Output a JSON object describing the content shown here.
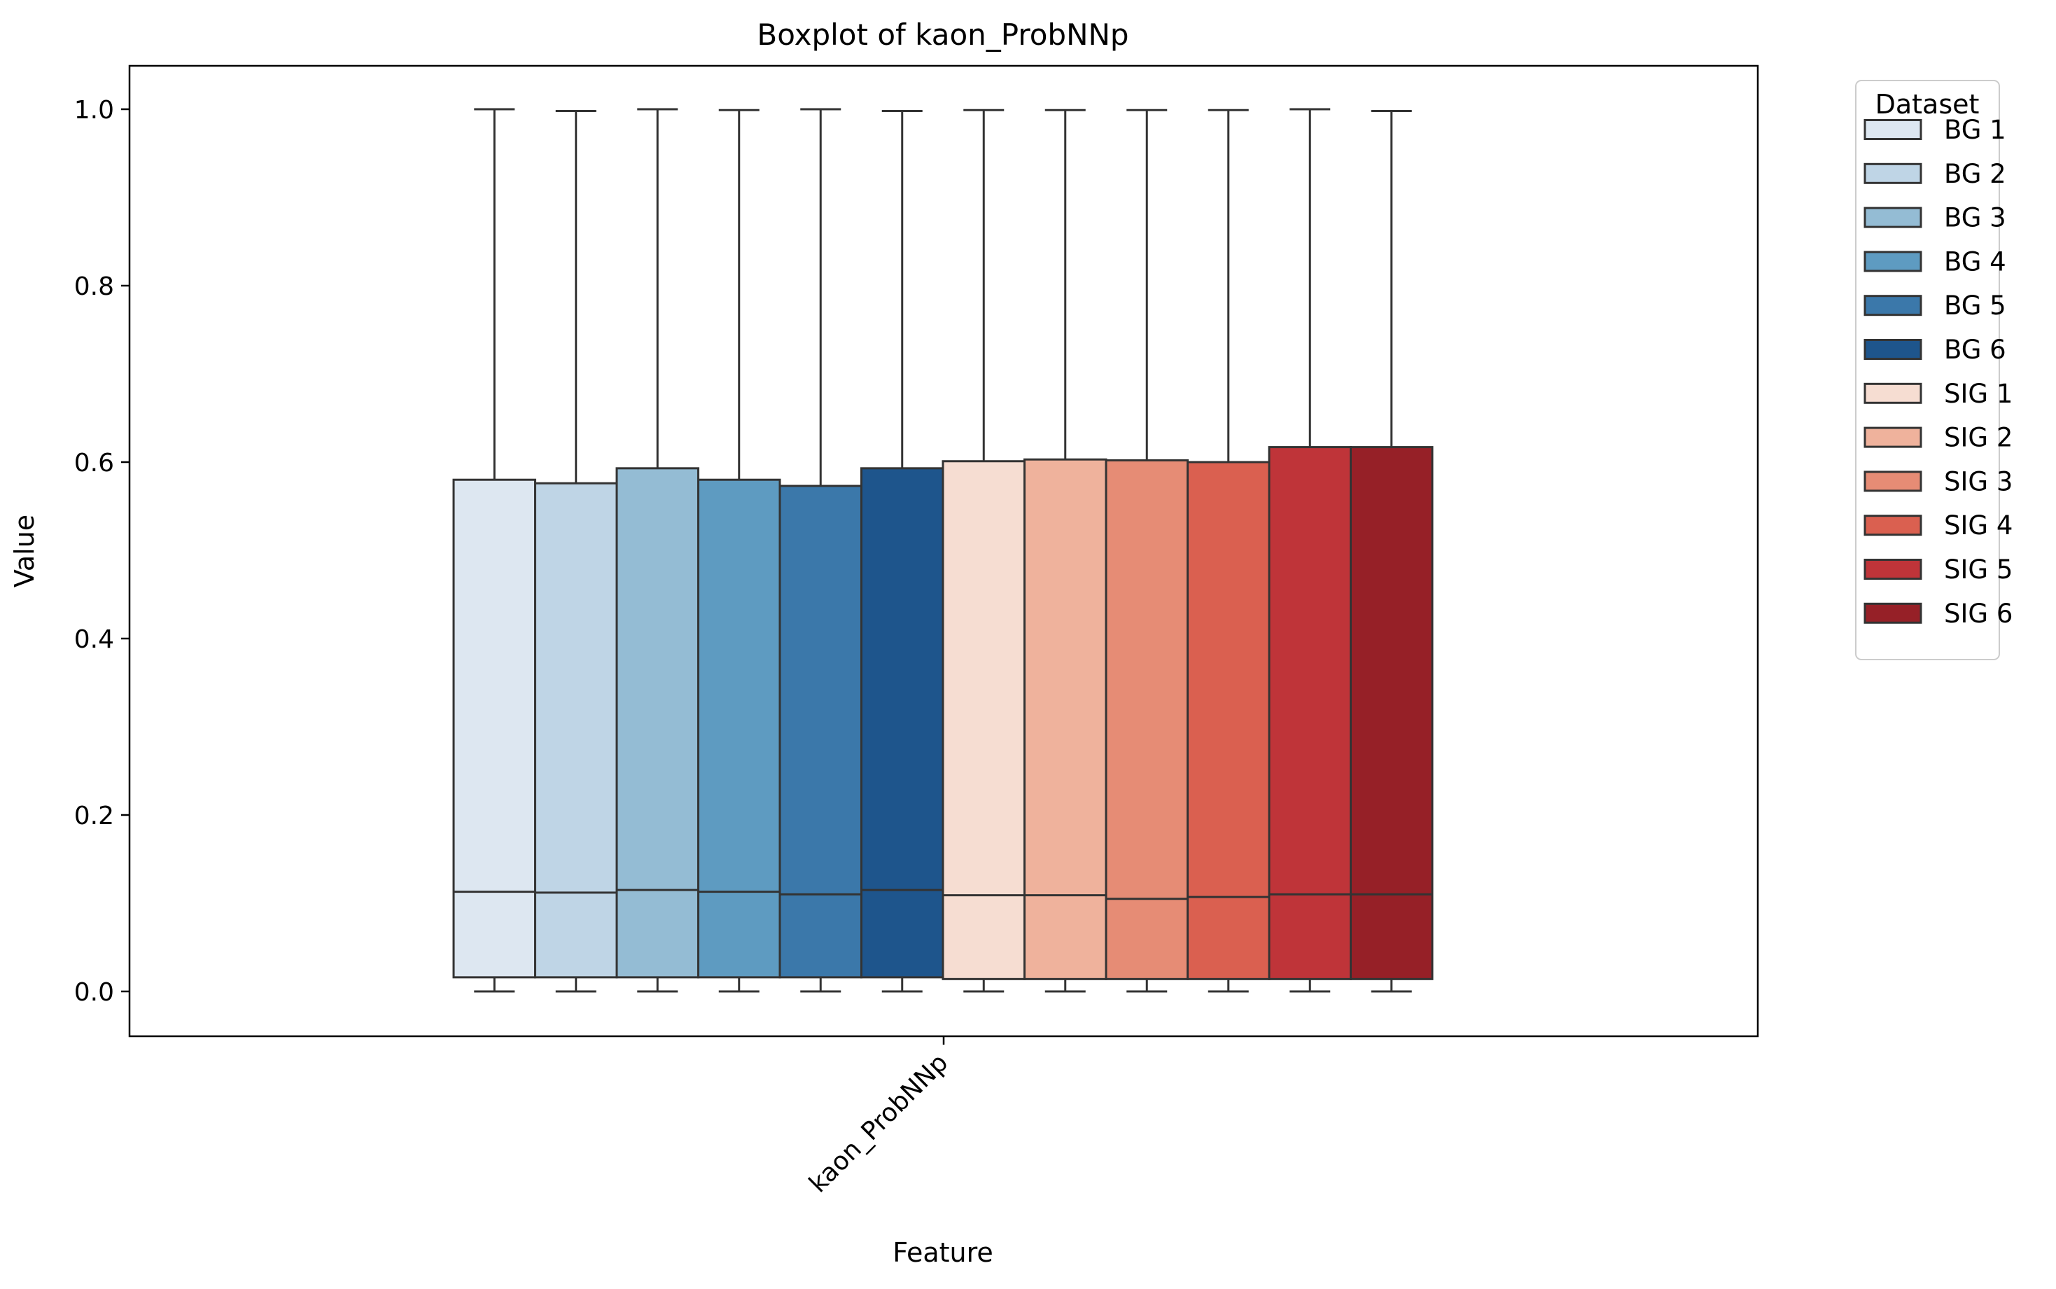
{
  "chart_data": {
    "type": "boxplot",
    "title": "Boxplot of kaon_ProbNNp",
    "xlabel": "Feature",
    "ylabel": "Value",
    "categories": [
      "kaon_ProbNNp"
    ],
    "ylim": [
      -0.05,
      1.05
    ],
    "yticks": [
      {
        "value": 0.0,
        "label": "0.0"
      },
      {
        "value": 0.2,
        "label": "0.2"
      },
      {
        "value": 0.4,
        "label": "0.4"
      },
      {
        "value": 0.6,
        "label": "0.6"
      },
      {
        "value": 0.8,
        "label": "0.8"
      },
      {
        "value": 1.0,
        "label": "1.0"
      }
    ],
    "grid": false,
    "legend": {
      "title": "Dataset",
      "placement": "outside-right-top"
    },
    "series": [
      {
        "name": "BG 1",
        "color": "#dde7f1",
        "whislo": 0.0,
        "q1": 0.016,
        "med": 0.113,
        "q3": 0.58,
        "whishi": 1.0
      },
      {
        "name": "BG 2",
        "color": "#bfd5e6",
        "whislo": 0.0,
        "q1": 0.016,
        "med": 0.112,
        "q3": 0.576,
        "whishi": 0.998
      },
      {
        "name": "BG 3",
        "color": "#94bcd4",
        "whislo": 0.0,
        "q1": 0.016,
        "med": 0.115,
        "q3": 0.593,
        "whishi": 1.0
      },
      {
        "name": "BG 4",
        "color": "#5e9bc1",
        "whislo": 0.0,
        "q1": 0.016,
        "med": 0.113,
        "q3": 0.58,
        "whishi": 0.999
      },
      {
        "name": "BG 5",
        "color": "#3b78aa",
        "whislo": 0.0,
        "q1": 0.016,
        "med": 0.11,
        "q3": 0.573,
        "whishi": 1.0
      },
      {
        "name": "BG 6",
        "color": "#1e558c",
        "whislo": 0.0,
        "q1": 0.016,
        "med": 0.115,
        "q3": 0.593,
        "whishi": 0.998
      },
      {
        "name": "SIG 1",
        "color": "#f6ddd2",
        "whislo": 0.0,
        "q1": 0.014,
        "med": 0.109,
        "q3": 0.601,
        "whishi": 0.999
      },
      {
        "name": "SIG 2",
        "color": "#efb29c",
        "whislo": 0.0,
        "q1": 0.014,
        "med": 0.109,
        "q3": 0.603,
        "whishi": 0.999
      },
      {
        "name": "SIG 3",
        "color": "#e68c75",
        "whislo": 0.0,
        "q1": 0.014,
        "med": 0.105,
        "q3": 0.602,
        "whishi": 0.999
      },
      {
        "name": "SIG 4",
        "color": "#da6050",
        "whislo": 0.0,
        "q1": 0.014,
        "med": 0.107,
        "q3": 0.6,
        "whishi": 0.999
      },
      {
        "name": "SIG 5",
        "color": "#bf3439",
        "whislo": 0.0,
        "q1": 0.014,
        "med": 0.11,
        "q3": 0.617,
        "whishi": 1.0
      },
      {
        "name": "SIG 6",
        "color": "#962027",
        "whislo": 0.0,
        "q1": 0.014,
        "med": 0.11,
        "q3": 0.617,
        "whishi": 0.998
      }
    ]
  }
}
